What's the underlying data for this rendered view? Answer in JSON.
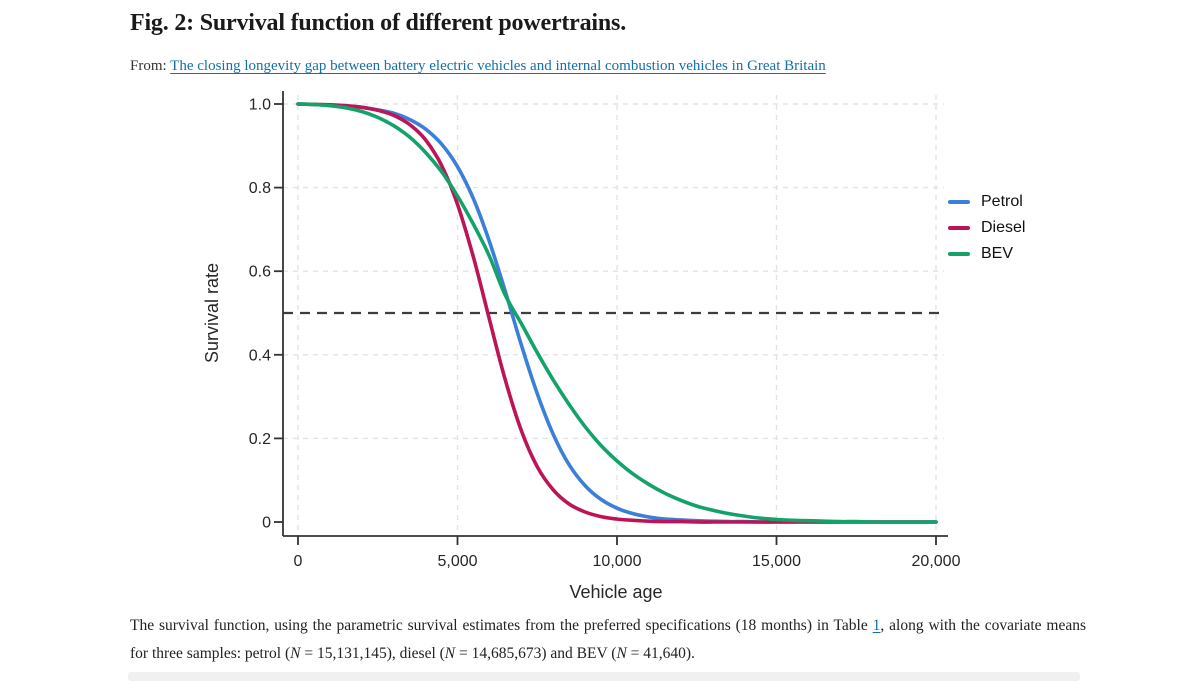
{
  "figure": {
    "title": "Fig. 2: Survival function of different powertrains.",
    "from_label": "From:",
    "source_link": "The closing longevity gap between battery electric vehicles and internal combustion vehicles in Great Britain"
  },
  "caption": {
    "parts": {
      "p1": "The survival function, using the parametric survival estimates from the preferred specifications (18 months) in Table ",
      "link1": "1",
      "p2": ", along with the covariate means for three samples: petrol (",
      "n1": "N",
      "p3": " = 15,131,145), diesel (",
      "n2": "N",
      "p4": " = 14,685,673) and BEV (",
      "n3": "N",
      "p5": " = 41,640)."
    }
  },
  "colors": {
    "link": "#1270ae",
    "axis": "#333333",
    "grid": "#e3e3e3",
    "reference_line": "#3d3d3d",
    "title_text": "#1a1a1a",
    "body_text": "#222222"
  },
  "chart_data": {
    "type": "line",
    "title": "",
    "xlabel": "Vehicle age",
    "ylabel": "Survival rate",
    "xlim": [
      0,
      20000
    ],
    "ylim": [
      0,
      1.0
    ],
    "grid": {
      "style": "dashed",
      "color": "#e3e3e3"
    },
    "reference_line": {
      "y": 0.5,
      "style": "dashed",
      "color": "#3d3d3d"
    },
    "legend_position": "top-right-outside",
    "x_ticks": [
      {
        "value": 0,
        "label": "0"
      },
      {
        "value": 5000,
        "label": "5,000"
      },
      {
        "value": 10000,
        "label": "10,000"
      },
      {
        "value": 15000,
        "label": "15,000"
      },
      {
        "value": 20000,
        "label": "20,000"
      }
    ],
    "y_ticks": [
      {
        "value": 0,
        "label": "0"
      },
      {
        "value": 0.2,
        "label": "0.2"
      },
      {
        "value": 0.4,
        "label": "0.4"
      },
      {
        "value": 0.6,
        "label": "0.6"
      },
      {
        "value": 0.8,
        "label": "0.8"
      },
      {
        "value": 1,
        "label": "1.0"
      }
    ],
    "x": [
      0,
      500,
      1000,
      1500,
      2000,
      2500,
      3000,
      3500,
      4000,
      4500,
      5000,
      5500,
      6000,
      6500,
      7000,
      7500,
      8000,
      8500,
      9000,
      9500,
      10000,
      10500,
      11000,
      11500,
      12000,
      12500,
      13000,
      13500,
      14000,
      14500,
      15000,
      15500,
      16000,
      16500,
      17000,
      17500,
      18000,
      18500,
      19000,
      19500,
      20000
    ],
    "series": [
      {
        "name": "Petrol",
        "color": "#3b7fd9",
        "values": [
          1,
          0.999,
          0.997,
          0.995,
          0.992,
          0.986,
          0.978,
          0.963,
          0.94,
          0.904,
          0.85,
          0.773,
          0.671,
          0.551,
          0.424,
          0.307,
          0.21,
          0.137,
          0.087,
          0.054,
          0.033,
          0.02,
          0.012,
          0.007,
          0.005,
          0.003,
          0.002,
          0.001,
          0.001,
          0,
          0,
          0,
          0,
          0,
          0,
          0,
          0,
          0,
          0,
          0,
          0
        ]
      },
      {
        "name": "Diesel",
        "color": "#bd1458",
        "values": [
          1,
          0.999,
          0.998,
          0.996,
          0.992,
          0.985,
          0.973,
          0.951,
          0.914,
          0.853,
          0.76,
          0.633,
          0.485,
          0.339,
          0.219,
          0.132,
          0.077,
          0.043,
          0.024,
          0.013,
          0.007,
          0.004,
          0.002,
          0.001,
          0.001,
          0,
          0,
          0,
          0,
          0,
          0,
          0,
          0,
          0,
          0,
          0,
          0,
          0,
          0,
          0,
          0
        ]
      },
      {
        "name": "BEV",
        "color": "#13a368",
        "values": [
          1,
          0.999,
          0.996,
          0.991,
          0.982,
          0.968,
          0.948,
          0.921,
          0.884,
          0.838,
          0.78,
          0.712,
          0.636,
          0.542,
          0.475,
          0.405,
          0.34,
          0.281,
          0.228,
          0.183,
          0.146,
          0.115,
          0.09,
          0.069,
          0.052,
          0.038,
          0.028,
          0.02,
          0.014,
          0.009,
          0.006,
          0.004,
          0.003,
          0.002,
          0.001,
          0.001,
          0,
          0,
          0,
          0,
          0
        ]
      }
    ]
  }
}
